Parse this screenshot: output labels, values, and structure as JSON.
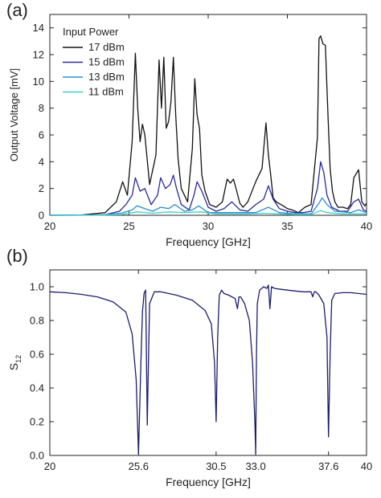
{
  "panels": {
    "a": {
      "label": "(a)"
    },
    "b": {
      "label": "(b)"
    }
  },
  "chart_data": [
    {
      "type": "line",
      "xlabel": "Frequency [GHz]",
      "ylabel": "Output Voltage [mV]",
      "xlim": [
        20,
        40
      ],
      "ylim": [
        0,
        15
      ],
      "xticks": [
        20,
        25,
        30,
        35,
        40
      ],
      "yticks": [
        0,
        2,
        4,
        6,
        8,
        10,
        12,
        14
      ],
      "legend_title": "Input Power",
      "legend_position": "top-left",
      "grid": false,
      "series": [
        {
          "name": "17 dBm",
          "color": "#111111",
          "x": [
            20,
            22,
            23.5,
            24.2,
            24.6,
            24.9,
            25.2,
            25.4,
            25.55,
            25.7,
            25.85,
            26.0,
            26.3,
            26.7,
            26.9,
            27.05,
            27.2,
            27.35,
            27.5,
            27.65,
            27.8,
            27.95,
            28.1,
            28.3,
            28.7,
            29.0,
            29.15,
            29.3,
            29.45,
            29.6,
            29.8,
            30.1,
            30.5,
            30.9,
            31.2,
            31.4,
            31.6,
            31.8,
            32.0,
            32.2,
            32.5,
            33.0,
            33.4,
            33.65,
            33.8,
            33.95,
            34.1,
            34.3,
            34.6,
            35.0,
            35.3,
            35.7,
            36.1,
            36.5,
            36.9,
            37.0,
            37.1,
            37.25,
            37.4,
            37.55,
            37.7,
            37.85,
            38.0,
            38.2,
            38.5,
            38.8,
            39.0,
            39.2,
            39.5,
            39.7,
            39.9,
            40.0
          ],
          "y": [
            0,
            0.02,
            0.2,
            1.0,
            2.5,
            1.5,
            5.5,
            12.1,
            8.0,
            5.5,
            6.8,
            6.0,
            2.3,
            4.5,
            11.6,
            8.0,
            11.8,
            6.5,
            7.0,
            8.5,
            11.8,
            7.5,
            4.2,
            2.0,
            1.0,
            5.0,
            10.2,
            7.5,
            6.5,
            3.0,
            1.8,
            0.8,
            0.6,
            1.0,
            2.7,
            2.4,
            2.7,
            1.8,
            0.9,
            0.6,
            1.0,
            2.5,
            3.5,
            6.9,
            4.5,
            3.0,
            1.3,
            1.0,
            0.8,
            0.5,
            0.4,
            0.2,
            0.6,
            0.8,
            5.8,
            13.2,
            13.4,
            12.8,
            12.7,
            8.0,
            3.5,
            1.8,
            1.0,
            0.6,
            0.6,
            0.5,
            0.8,
            2.8,
            3.4,
            1.0,
            0.7,
            0.9
          ]
        },
        {
          "name": "15 dBm",
          "color": "#2a2a9a",
          "x": [
            20,
            22,
            23.5,
            24.4,
            24.8,
            25.2,
            25.4,
            25.7,
            26.0,
            26.4,
            26.8,
            27.0,
            27.3,
            27.6,
            27.8,
            28.0,
            28.3,
            28.8,
            29.1,
            29.3,
            29.6,
            30.0,
            30.5,
            31.0,
            31.5,
            32.0,
            32.5,
            33.0,
            33.5,
            33.8,
            34.1,
            34.5,
            35.0,
            35.5,
            36.0,
            36.5,
            36.9,
            37.1,
            37.3,
            37.5,
            37.8,
            38.3,
            38.8,
            39.2,
            39.5,
            39.8,
            40.0
          ],
          "y": [
            0,
            0.01,
            0.05,
            0.3,
            0.8,
            1.5,
            2.8,
            1.8,
            2.0,
            0.8,
            1.5,
            2.8,
            2.0,
            2.3,
            3.0,
            2.0,
            0.8,
            0.4,
            1.5,
            2.5,
            1.8,
            0.6,
            0.3,
            0.5,
            1.0,
            0.4,
            0.3,
            0.8,
            1.2,
            2.2,
            1.2,
            0.5,
            0.3,
            0.2,
            0.2,
            0.3,
            2.0,
            4.0,
            3.2,
            1.5,
            0.6,
            0.3,
            0.3,
            1.0,
            1.2,
            0.4,
            0.3
          ]
        },
        {
          "name": "13 dBm",
          "color": "#2a8fd0",
          "x": [
            20,
            23,
            24.5,
            25.2,
            25.5,
            26.0,
            26.5,
            27.0,
            27.5,
            27.9,
            28.5,
            29.0,
            29.4,
            30.0,
            31.0,
            32.0,
            33.0,
            33.8,
            34.5,
            35.5,
            36.5,
            37.0,
            37.2,
            37.5,
            38.0,
            39.0,
            39.5,
            40.0
          ],
          "y": [
            0,
            0.01,
            0.15,
            0.4,
            0.7,
            0.5,
            0.3,
            0.6,
            0.5,
            0.8,
            0.3,
            0.4,
            0.7,
            0.2,
            0.2,
            0.2,
            0.2,
            0.6,
            0.2,
            0.1,
            0.1,
            0.9,
            1.3,
            0.8,
            0.3,
            0.2,
            0.4,
            0.2
          ]
        },
        {
          "name": "11 dBm",
          "color": "#3fcfc8",
          "x": [
            20,
            23,
            24.5,
            25.5,
            26.5,
            27.5,
            28.5,
            29.5,
            30.5,
            31.5,
            32.5,
            33.5,
            34.5,
            35.5,
            36.5,
            37.1,
            37.5,
            38.5,
            39.5,
            40.0
          ],
          "y": [
            0,
            0.01,
            0.05,
            0.25,
            0.15,
            0.25,
            0.2,
            0.25,
            0.1,
            0.1,
            0.1,
            0.15,
            0.1,
            0.05,
            0.05,
            0.35,
            0.2,
            0.1,
            0.1,
            0.1
          ]
        }
      ]
    },
    {
      "type": "line",
      "xlabel": "Frequency [GHz]",
      "ylabel": "S12",
      "ylabel_main": "S",
      "ylabel_sub": "12",
      "xlim": [
        20,
        40
      ],
      "ylim": [
        0,
        1.1
      ],
      "xticks": [
        20,
        25.6,
        30.5,
        33.0,
        37.6,
        40
      ],
      "xtick_labels": [
        "20",
        "25.6",
        "30.5",
        "33.0",
        "37.6",
        "40"
      ],
      "yticks": [
        0.0,
        0.2,
        0.4,
        0.6,
        0.8,
        1.0
      ],
      "ytick_labels": [
        "0.0",
        "0.2",
        "0.4",
        "0.6",
        "0.8",
        "1.0"
      ],
      "grid": false,
      "series": [
        {
          "color": "#1c1c6e",
          "x": [
            20,
            21,
            22,
            23,
            24,
            24.8,
            25.2,
            25.45,
            25.6,
            25.75,
            25.85,
            25.95,
            26.05,
            26.15,
            26.3,
            26.6,
            27,
            28,
            29,
            29.8,
            30.2,
            30.4,
            30.5,
            30.6,
            30.7,
            30.85,
            31.0,
            31.3,
            31.7,
            31.85,
            31.95,
            32.05,
            32.3,
            32.6,
            32.8,
            32.95,
            33.0,
            33.05,
            33.1,
            33.25,
            33.5,
            33.7,
            33.8,
            33.9,
            34.0,
            34.2,
            34.6,
            35,
            35.5,
            36,
            36.5,
            36.6,
            36.7,
            36.8,
            37.0,
            37.3,
            37.5,
            37.6,
            37.7,
            37.8,
            38.0,
            38.5,
            39,
            39.5,
            40
          ],
          "y": [
            0.97,
            0.965,
            0.955,
            0.94,
            0.91,
            0.85,
            0.72,
            0.45,
            0.01,
            0.55,
            0.85,
            0.96,
            0.98,
            0.18,
            0.9,
            0.97,
            0.97,
            0.95,
            0.92,
            0.86,
            0.78,
            0.55,
            0.2,
            0.7,
            0.95,
            0.98,
            0.96,
            0.95,
            0.93,
            0.87,
            0.94,
            0.94,
            0.9,
            0.8,
            0.55,
            0.2,
            0.01,
            0.6,
            0.9,
            0.98,
            1.0,
            0.99,
            1.01,
            0.87,
            1.0,
            0.99,
            0.985,
            0.98,
            0.975,
            0.97,
            0.97,
            0.94,
            0.97,
            0.97,
            0.95,
            0.9,
            0.7,
            0.11,
            0.6,
            0.92,
            0.96,
            0.965,
            0.965,
            0.96,
            0.955
          ]
        }
      ]
    }
  ]
}
